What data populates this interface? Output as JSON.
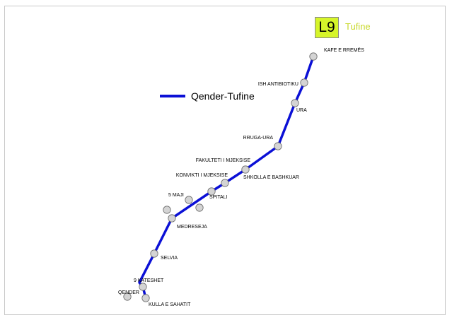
{
  "colors": {
    "route": "#0b10d6",
    "badge_bg": "#d6f52a",
    "destination_text": "#c8d82a",
    "stop_fill": "#d4d4d4",
    "stop_stroke": "#6a6a6a"
  },
  "line_badge": "L9",
  "destination": "Tufine",
  "legend": {
    "label": "Qender-Tufine"
  },
  "stops": [
    {
      "name": "KAFE E RREMËS"
    },
    {
      "name": "ISH ANTIBIOTIKU"
    },
    {
      "name": "URA"
    },
    {
      "name": "RRUGA-URA"
    },
    {
      "name": "FAKULTETI I MJEKSISE"
    },
    {
      "name": "SHKOLLA E BASHKUAR"
    },
    {
      "name": "KONVIKTI I MJEKSISE"
    },
    {
      "name": "SPITALI"
    },
    {
      "name": "5 MAJI"
    },
    {
      "name": ""
    },
    {
      "name": ""
    },
    {
      "name": "MEDRESEJA"
    },
    {
      "name": "SELVIA"
    },
    {
      "name": "9 KATESHET"
    },
    {
      "name": "QENDER"
    },
    {
      "name": "KULLA E SAHATIT"
    }
  ]
}
